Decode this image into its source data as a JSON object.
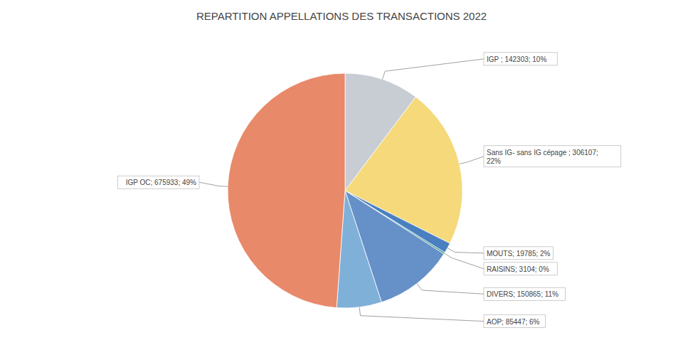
{
  "chart_data": {
    "type": "pie",
    "title": "REPARTITION APPELLATIONS DES TRANSACTIONS 2022",
    "categories": [
      "IGP ",
      "Sans IG- sans IG cépage",
      "MOUTS",
      "RAISINS",
      "DIVERS",
      "AOP",
      "IGP OC"
    ],
    "values": [
      142303,
      306107,
      19785,
      3104,
      150865,
      85447,
      675933
    ],
    "colors": [
      "#c8cdd4",
      "#f5d97a",
      "#4a7fc1",
      "#3a9a8a",
      "#6690c8",
      "#7fb0d8",
      "#e8896a"
    ],
    "data_labels": true,
    "value_labels": [
      "IGP ; 142303; 10%",
      "Sans IG- sans IG cépage ; 306107;\n22%",
      "MOUTS; 19785; 2%",
      "RAISINS; 3104; 0%",
      "DIVERS; 150865; 11%",
      "AOP; 85447; 6%",
      "IGP OC; 675933; 49%"
    ]
  }
}
